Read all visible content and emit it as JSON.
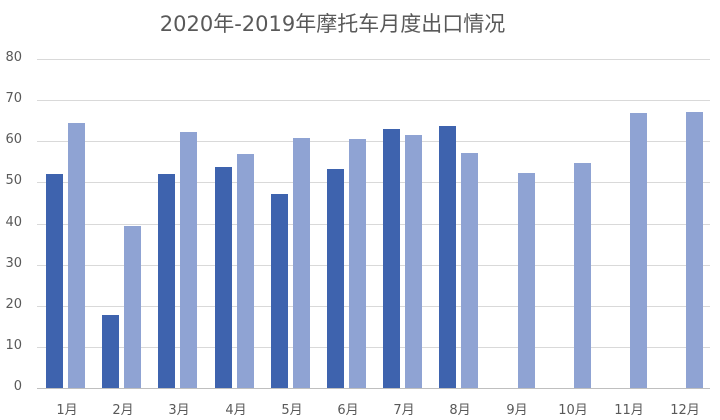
{
  "chart_data": {
    "type": "bar",
    "title": "2020年-2019年摩托车月度出口情况",
    "xlabel": "",
    "ylabel": "",
    "ylim": [
      0,
      80
    ],
    "yticks": [
      0,
      10,
      20,
      30,
      40,
      50,
      60,
      70,
      80
    ],
    "grid": true,
    "legend": "none",
    "categories": [
      "1月",
      "2月",
      "3月",
      "4月",
      "5月",
      "6月",
      "7月",
      "8月",
      "9月",
      "10月",
      "11月",
      "12月"
    ],
    "series": [
      {
        "name": "2020年",
        "color": "#3E63AE",
        "values": [
          52.0,
          17.7,
          52.0,
          53.7,
          47.1,
          53.2,
          62.9,
          63.7,
          null,
          null,
          null,
          null
        ]
      },
      {
        "name": "2019年",
        "color": "#8FA3D3",
        "values": [
          64.4,
          39.3,
          62.2,
          56.8,
          60.7,
          60.5,
          61.5,
          57.1,
          52.4,
          54.6,
          66.8,
          67.1
        ]
      }
    ]
  }
}
